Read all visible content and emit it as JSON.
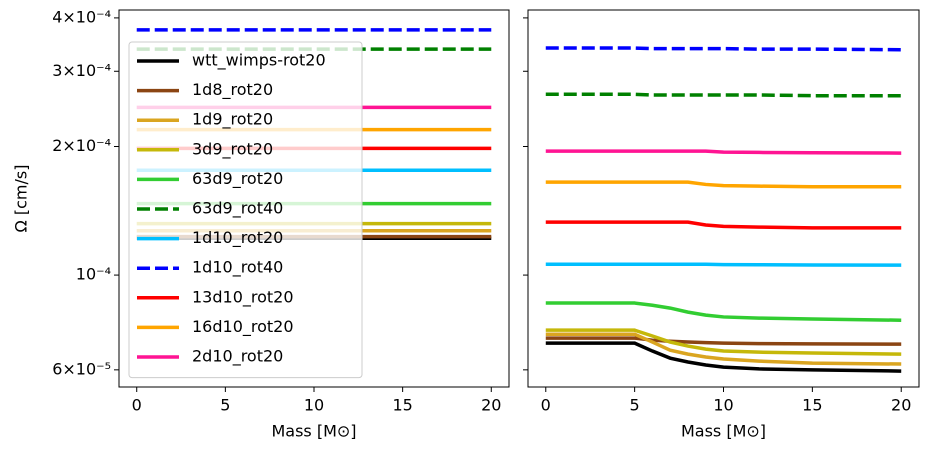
{
  "chart_data": [
    {
      "type": "line",
      "ylabel": "Ω [cm/s]",
      "xlabel": "Mass [M⊙]",
      "log_y": true,
      "legend": "upper left",
      "xlim": [
        -1,
        21
      ],
      "xticks": [
        0,
        5,
        10,
        15,
        20
      ],
      "ylim": [
        5.47e-05,
        0.0004174
      ],
      "yticks": [
        {
          "value": 6e-05,
          "label": "6×10⁻⁵"
        },
        {
          "value": 0.0001,
          "label": "10⁻⁴"
        },
        {
          "value": 0.0002,
          "label": "2×10⁻⁴"
        },
        {
          "value": 0.0003,
          "label": "3×10⁻⁴"
        },
        {
          "value": 0.0004,
          "label": "4×10⁻⁴"
        }
      ],
      "x": [
        0,
        20
      ],
      "series": [
        {
          "name": "wtt_wimps-rot20",
          "color": "#000000",
          "values": [
            0.000122,
            0.000122
          ]
        },
        {
          "name": "1d8_rot20",
          "color": "#8b4513",
          "values": [
            0.000123,
            0.000123
          ]
        },
        {
          "name": "1d9_rot20",
          "color": "#daa520",
          "values": [
            0.000127,
            0.000127
          ]
        },
        {
          "name": "3d9_rot20",
          "color": "#c5b80a",
          "values": [
            0.000132,
            0.000132
          ]
        },
        {
          "name": "63d9_rot20",
          "color": "#32cd32",
          "values": [
            0.000147,
            0.000147
          ]
        },
        {
          "name": "63d9_rot40",
          "color": "#008000",
          "dashed": true,
          "values": [
            0.000338,
            0.000338
          ]
        },
        {
          "name": "1d10_rot20",
          "color": "#00bfff",
          "values": [
            0.000176,
            0.000176
          ]
        },
        {
          "name": "1d10_rot40",
          "color": "#0000ff",
          "dashed": true,
          "values": [
            0.000375,
            0.000375
          ]
        },
        {
          "name": "13d10_rot20",
          "color": "#ff0000",
          "values": [
            0.000198,
            0.000198
          ]
        },
        {
          "name": "16d10_rot20",
          "color": "#ffa500",
          "values": [
            0.000219,
            0.000219
          ]
        },
        {
          "name": "2d10_rot20",
          "color": "#ff1493",
          "values": [
            0.000247,
            0.000247
          ]
        }
      ]
    },
    {
      "type": "line",
      "xlabel": "Mass [M⊙]",
      "log_y": true,
      "sharey": true,
      "xlim": [
        -1,
        21
      ],
      "xticks": [
        0,
        5,
        10,
        15,
        20
      ],
      "x": [
        0,
        2,
        4,
        5,
        6,
        7,
        8,
        9,
        10,
        12,
        15,
        20
      ],
      "series": [
        {
          "color": "#000000",
          "values": [
            6.93e-05,
            6.93e-05,
            6.93e-05,
            6.93e-05,
            6.64e-05,
            6.39e-05,
            6.26e-05,
            6.16e-05,
            6.09e-05,
            6.03e-05,
            6e-05,
            5.96e-05
          ]
        },
        {
          "color": "#8b4513",
          "values": [
            7.12e-05,
            7.12e-05,
            7.12e-05,
            7.12e-05,
            7.04e-05,
            7e-05,
            6.97e-05,
            6.95e-05,
            6.93e-05,
            6.91e-05,
            6.9e-05,
            6.89e-05
          ]
        },
        {
          "color": "#daa520",
          "values": [
            7.27e-05,
            7.27e-05,
            7.27e-05,
            7.27e-05,
            6.97e-05,
            6.67e-05,
            6.53e-05,
            6.43e-05,
            6.36e-05,
            6.29e-05,
            6.22e-05,
            6.19e-05
          ]
        },
        {
          "color": "#c5b80a",
          "values": [
            7.43e-05,
            7.43e-05,
            7.43e-05,
            7.43e-05,
            7.2e-05,
            6.97e-05,
            6.82e-05,
            6.71e-05,
            6.64e-05,
            6.6e-05,
            6.57e-05,
            6.53e-05
          ]
        },
        {
          "color": "#32cd32",
          "values": [
            8.6e-05,
            8.6e-05,
            8.6e-05,
            8.6e-05,
            8.5e-05,
            8.37e-05,
            8.19e-05,
            8.06e-05,
            7.98e-05,
            7.93e-05,
            7.89e-05,
            7.84e-05
          ]
        },
        {
          "color": "#008000",
          "dashed": true,
          "values": [
            0.000265,
            0.000265,
            0.000265,
            0.000265,
            0.000264,
            0.000264,
            0.000264,
            0.000264,
            0.000264,
            0.000264,
            0.000263,
            0.000263
          ]
        },
        {
          "color": "#00bfff",
          "values": [
            0.000106,
            0.000106,
            0.000106,
            0.000106,
            0.000106,
            0.000106,
            0.000106,
            0.000106,
            0.0001058,
            0.0001057,
            0.0001056,
            0.0001055
          ]
        },
        {
          "color": "#0000ff",
          "dashed": true,
          "values": [
            0.00034,
            0.00034,
            0.00034,
            0.00034,
            0.000339,
            0.000339,
            0.000339,
            0.000339,
            0.000339,
            0.000338,
            0.000338,
            0.000337
          ]
        },
        {
          "color": "#ff0000",
          "values": [
            0.000133,
            0.000133,
            0.000133,
            0.000133,
            0.000133,
            0.000133,
            0.000133,
            0.000131,
            0.00013,
            0.0001295,
            0.000129,
            0.000129
          ]
        },
        {
          "color": "#ffa500",
          "values": [
            0.000165,
            0.000165,
            0.000165,
            0.000165,
            0.000165,
            0.000165,
            0.000165,
            0.000163,
            0.000162,
            0.0001615,
            0.000161,
            0.000161
          ]
        },
        {
          "color": "#ff1493",
          "values": [
            0.000195,
            0.000195,
            0.000195,
            0.000195,
            0.000195,
            0.000195,
            0.000195,
            0.000195,
            0.000194,
            0.0001937,
            0.0001933,
            0.000193
          ]
        }
      ]
    }
  ]
}
